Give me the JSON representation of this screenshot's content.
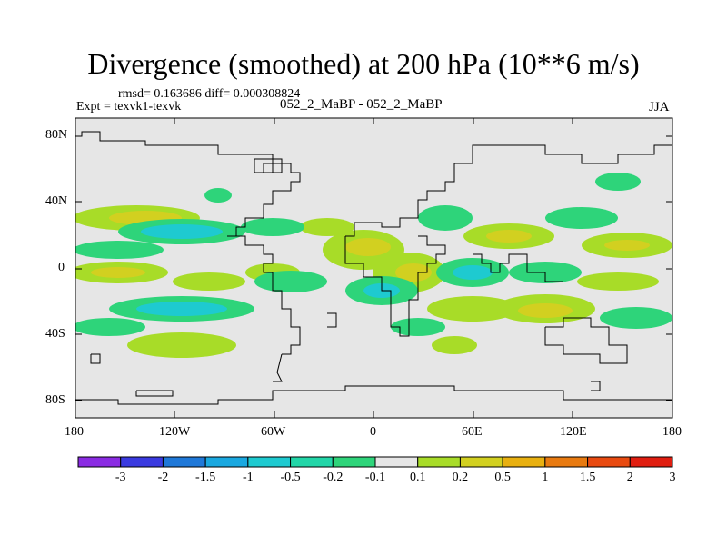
{
  "title": "Divergence (smoothed) at 200 hPa (10**6 m/s)",
  "stats": "rmsd= 0.163686 diff= 0.000308824",
  "experiment": "Expt = texvk1-texvk",
  "period": "052_2_MaBP - 052_2_MaBP",
  "season": "JJA",
  "lat_ticks": [
    "80N",
    "40N",
    "0",
    "40S",
    "80S"
  ],
  "lon_ticks": [
    "180",
    "120W",
    "60W",
    "0",
    "60E",
    "120E",
    "180"
  ],
  "colorbar": {
    "labels": [
      "-3",
      "-2",
      "-1.5",
      "-1",
      "-0.5",
      "-0.2",
      "-0.1",
      "0.1",
      "0.2",
      "0.5",
      "1",
      "1.5",
      "2",
      "3"
    ],
    "colors": [
      "#8a2be2",
      "#3a3ae0",
      "#1f78d8",
      "#1aa8e0",
      "#1ecad0",
      "#22d6a8",
      "#2ed47a",
      "#e6e6e6",
      "#a8dc28",
      "#d2d020",
      "#e8b010",
      "#e87a10",
      "#e84a10",
      "#e01e10"
    ]
  },
  "land_color": "#e6e6e6"
}
